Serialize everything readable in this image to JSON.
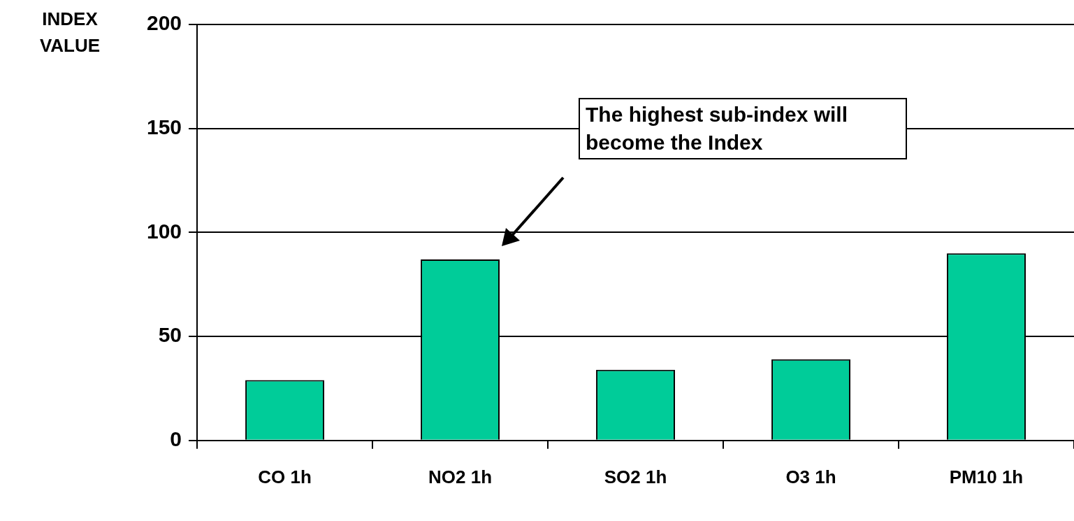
{
  "chart_data": {
    "type": "bar",
    "ylabel": "INDEX VALUE",
    "categories": [
      "CO 1h",
      "NO2 1h",
      "SO2 1h",
      "O3 1h",
      "PM10 1h"
    ],
    "values": [
      29,
      87,
      34,
      39,
      90
    ],
    "color": "#00cc99",
    "ylim": [
      0,
      200
    ],
    "yticks": [
      0,
      50,
      100,
      150,
      200
    ],
    "grid": "y",
    "annotations": [
      "The highest sub-index will become the Index"
    ]
  }
}
